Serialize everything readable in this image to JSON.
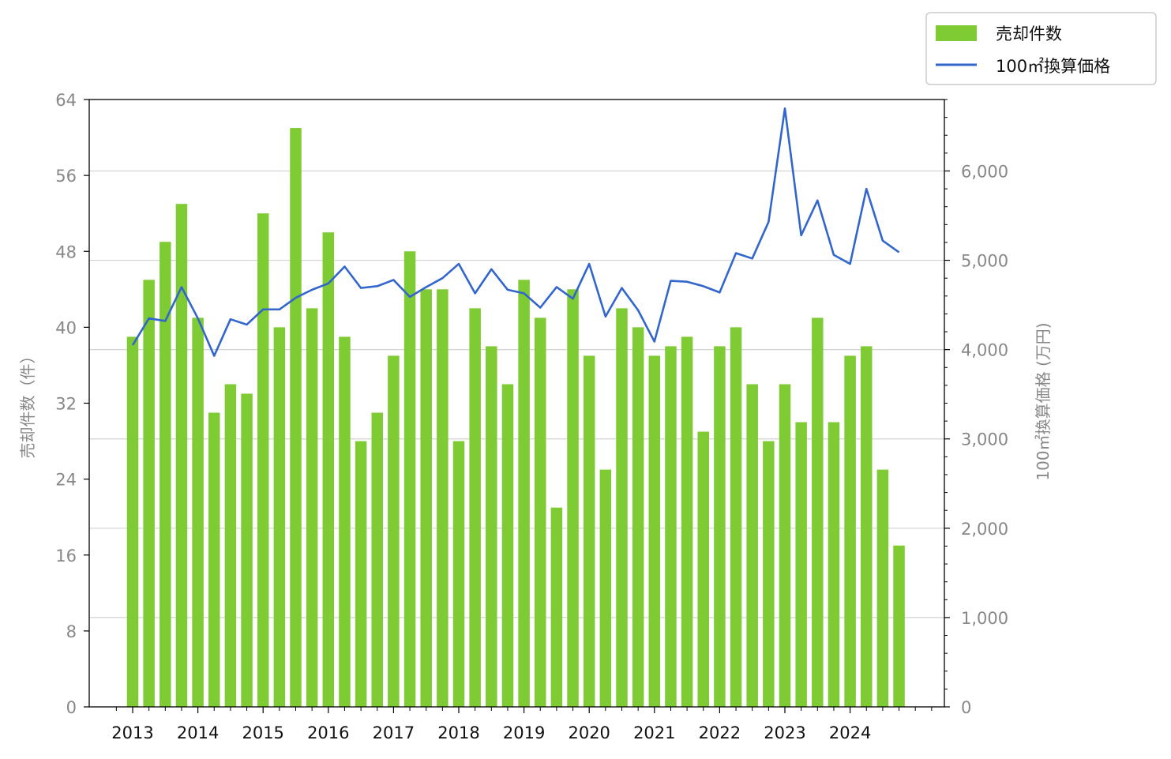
{
  "chart_data": {
    "type": "bar",
    "title": "",
    "xlabel": "",
    "ylabel_left": "売却件数（件）",
    "ylabel_right": "100㎡換算価格 (万円)",
    "ylim_left": [
      0,
      64
    ],
    "ylim_right": [
      0,
      6800
    ],
    "yticks_left": [
      "0",
      "8",
      "16",
      "24",
      "32",
      "40",
      "48",
      "56",
      "64"
    ],
    "yticks_left_values": [
      0,
      8,
      16,
      24,
      32,
      40,
      48,
      56,
      64
    ],
    "yticks_right": [
      "0",
      "1,000",
      "2,000",
      "3,000",
      "4,000",
      "5,000",
      "6,000"
    ],
    "yticks_right_values": [
      0,
      1000,
      2000,
      3000,
      4000,
      5000,
      6000
    ],
    "year_labels": [
      "2013",
      "2014",
      "2015",
      "2016",
      "2017",
      "2018",
      "2019",
      "2020",
      "2021",
      "2022",
      "2023",
      "2024"
    ],
    "grid": "horizontal (right axis)",
    "legend_position": "top-right",
    "colors": {
      "bars": "#7fcb33",
      "line": "#3366cc",
      "grid": "#d3d3d3"
    },
    "series": [
      {
        "name": "売却件数",
        "type": "bar",
        "axis": "left",
        "values": [
          39,
          45,
          49,
          53,
          41,
          31,
          34,
          33,
          52,
          40,
          61,
          42,
          50,
          39,
          28,
          31,
          37,
          48,
          44,
          44,
          28,
          42,
          38,
          34,
          45,
          41,
          21,
          44,
          37,
          25,
          42,
          40,
          37,
          38,
          39,
          29,
          38,
          40,
          34,
          28,
          34,
          30,
          41,
          30,
          37,
          38,
          25,
          17
        ]
      },
      {
        "name": "100㎡換算価格",
        "type": "line",
        "axis": "right",
        "values": [
          4050,
          4350,
          4320,
          4700,
          4350,
          3930,
          4340,
          4280,
          4450,
          4450,
          4580,
          4670,
          4740,
          4930,
          4690,
          4710,
          4780,
          4590,
          4700,
          4800,
          4960,
          4630,
          4900,
          4670,
          4630,
          4470,
          4700,
          4570,
          4960,
          4370,
          4690,
          4440,
          4090,
          4770,
          4760,
          4710,
          4640,
          5080,
          5020,
          5430,
          6700,
          5280,
          5670,
          5060,
          4960,
          5800,
          5220,
          5090
        ]
      }
    ]
  }
}
